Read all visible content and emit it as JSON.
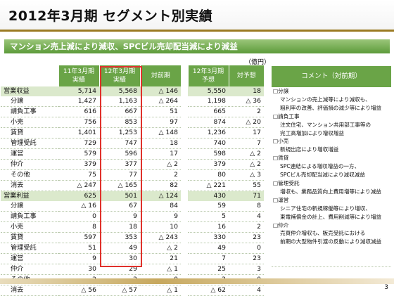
{
  "title": "2012年3月期 セグメント別実績",
  "banner": "マンション売上減により減収、SPCビル売却配当減により減益",
  "unit": "（億円）",
  "headers": {
    "prev": "11年3月期\n実績",
    "curr": "12年3月期\n実績",
    "yoy": "対前期",
    "plan": "12年3月期\n予想",
    "vs_plan": "対予想",
    "comment": "コメント（対前期）"
  },
  "rows": [
    {
      "label": "営業収益",
      "section": true,
      "prev": "5,714",
      "curr": "5,568",
      "yoy": "△ 146",
      "plan": "5,550",
      "vs": "18"
    },
    {
      "label": "分譲",
      "prev": "1,427",
      "curr": "1,163",
      "yoy": "△ 264",
      "plan": "1,198",
      "vs": "△ 36"
    },
    {
      "label": "請負工事",
      "prev": "616",
      "curr": "667",
      "yoy": "51",
      "plan": "665",
      "vs": "2"
    },
    {
      "label": "小売",
      "prev": "756",
      "curr": "853",
      "yoy": "97",
      "plan": "874",
      "vs": "△ 20"
    },
    {
      "label": "賃貸",
      "prev": "1,401",
      "curr": "1,253",
      "yoy": "△ 148",
      "plan": "1,236",
      "vs": "17"
    },
    {
      "label": "管理受託",
      "prev": "729",
      "curr": "747",
      "yoy": "18",
      "plan": "740",
      "vs": "7"
    },
    {
      "label": "運営",
      "prev": "579",
      "curr": "596",
      "yoy": "17",
      "plan": "598",
      "vs": "△ 2"
    },
    {
      "label": "仲介",
      "prev": "379",
      "curr": "377",
      "yoy": "△ 2",
      "plan": "379",
      "vs": "△ 2"
    },
    {
      "label": "その他",
      "prev": "75",
      "curr": "77",
      "yoy": "2",
      "plan": "80",
      "vs": "△ 3"
    },
    {
      "label": "消去",
      "prev": "△ 247",
      "curr": "△ 165",
      "yoy": "82",
      "plan": "△ 221",
      "vs": "55"
    },
    {
      "label": "営業利益",
      "section": true,
      "prev": "625",
      "curr": "501",
      "yoy": "△ 124",
      "plan": "430",
      "vs": "71"
    },
    {
      "label": "分譲",
      "prev": "△ 16",
      "curr": "67",
      "yoy": "84",
      "plan": "59",
      "vs": "8"
    },
    {
      "label": "請負工事",
      "prev": "0",
      "curr": "9",
      "yoy": "9",
      "plan": "5",
      "vs": "4"
    },
    {
      "label": "小売",
      "prev": "8",
      "curr": "18",
      "yoy": "10",
      "plan": "16",
      "vs": "2"
    },
    {
      "label": "賃貸",
      "prev": "597",
      "curr": "353",
      "yoy": "△ 243",
      "plan": "330",
      "vs": "23"
    },
    {
      "label": "管理受託",
      "prev": "51",
      "curr": "49",
      "yoy": "△ 2",
      "plan": "49",
      "vs": "0"
    },
    {
      "label": "運営",
      "prev": "9",
      "curr": "30",
      "yoy": "21",
      "plan": "7",
      "vs": "23"
    },
    {
      "label": "仲介",
      "prev": "30",
      "curr": "29",
      "yoy": "△ 1",
      "plan": "25",
      "vs": "3"
    },
    {
      "label": "その他",
      "prev": "2",
      "curr": "2",
      "yoy": "0",
      "plan": "2",
      "vs": "0"
    },
    {
      "label": "消去",
      "prev": "△ 56",
      "curr": "△ 57",
      "yoy": "△ 1",
      "plan": "△ 62",
      "vs": "4"
    }
  ],
  "comments": [
    {
      "text": "□分譲",
      "head": true
    },
    {
      "text": "マンションの売上減等により減収も、"
    },
    {
      "text": "粗利率の改善、評価損の減少等により増益"
    },
    {
      "text": "□請負工事",
      "head": true
    },
    {
      "text": "注文住宅、マンション共用部工事等の"
    },
    {
      "text": "完工高増加により増収増益"
    },
    {
      "text": "□小売",
      "head": true
    },
    {
      "text": "新規出店により増収増益"
    },
    {
      "text": "□賃貸",
      "head": true
    },
    {
      "text": "SPC連結による増収増益の一方、"
    },
    {
      "text": "SPCビル売却配当減により減収減益"
    },
    {
      "text": "□管理受託",
      "head": true
    },
    {
      "text": "増収も、業務品質向上費用増等により減益"
    },
    {
      "text": "□運営",
      "head": true
    },
    {
      "text": "シニア住宅の新規稼働等により増収、"
    },
    {
      "text": "東電補償金の計上、費用削減等により増益"
    },
    {
      "text": "□仲介",
      "head": true
    },
    {
      "text": "売買仲介増収も、販売受託における"
    },
    {
      "text": "前期の大型物件引渡の反動により減収減益"
    }
  ],
  "page_number": "3"
}
